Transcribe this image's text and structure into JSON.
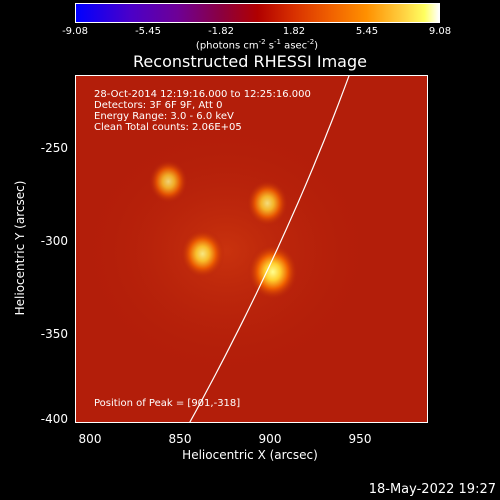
{
  "colorbar": {
    "ticks": [
      "-9.08",
      "-5.45",
      "-1.82",
      "1.82",
      "5.45",
      "9.08"
    ],
    "units_main": "(photons cm",
    "units_exp1": "-2",
    "units_mid": " s",
    "units_exp2": "-1",
    "units_mid2": " asec",
    "units_exp3": "-2",
    "units_end": ")"
  },
  "title": "Reconstructed RHESSI Image",
  "info": {
    "line1": "28-Oct-2014 12:19:16.000 to 12:25:16.000",
    "line2": "Detectors: 3F 6F 9F, Att 0",
    "line3": "Energy Range: 3.0 - 6.0 keV",
    "line4": "Clean    Total counts: 2.06E+05",
    "peak": "Position of Peak = [901,-318]"
  },
  "axes": {
    "xlabel": "Heliocentric X (arcsec)",
    "ylabel": "Heliocentric Y (arcsec)",
    "xticks": [
      "800",
      "850",
      "900",
      "950"
    ],
    "yticks": [
      "-250",
      "-300",
      "-350",
      "-400"
    ]
  },
  "timestamp": "18-May-2022 19:27",
  "colors": {
    "background": "#b31e0a",
    "limb": "#ffffff"
  },
  "sources": [
    {
      "x": 843,
      "y": -268,
      "level": 0.55
    },
    {
      "x": 898,
      "y": -280,
      "level": 0.65
    },
    {
      "x": 862,
      "y": -308,
      "level": 0.75
    },
    {
      "x": 901,
      "y": -318,
      "level": 1.0
    }
  ]
}
